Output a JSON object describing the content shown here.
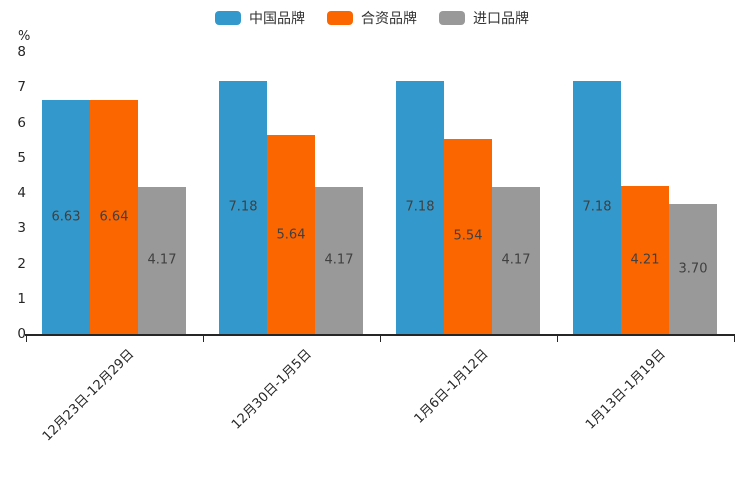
{
  "legend": {
    "items": [
      {
        "label": "中国品牌",
        "color": "#3399cc"
      },
      {
        "label": "合资品牌",
        "color": "#fc6600"
      },
      {
        "label": "进口品牌",
        "color": "#999999"
      }
    ]
  },
  "y_axis": {
    "unit": "%",
    "tick_labels": [
      "8",
      "7",
      "6",
      "5",
      "4",
      "3",
      "2",
      "1",
      "0"
    ]
  },
  "chart_data": {
    "type": "bar",
    "title": "",
    "categories": [
      "12月23日-12月29日",
      "12月30日-1月5日",
      "1月6日-1月12日",
      "1月13日-1月19日"
    ],
    "series": [
      {
        "name": "中国品牌",
        "color": "#3399cc",
        "values": [
          6.63,
          7.18,
          7.18,
          7.18
        ]
      },
      {
        "name": "合资品牌",
        "color": "#fc6600",
        "values": [
          6.64,
          5.64,
          5.54,
          4.21
        ]
      },
      {
        "name": "进口品牌",
        "color": "#999999",
        "values": [
          4.17,
          4.17,
          4.17,
          3.7
        ]
      }
    ],
    "xlabel": "",
    "ylabel": "%",
    "ylim": [
      0,
      8
    ],
    "grid": false,
    "legend_position": "top",
    "value_labels": "centered-inside-bars",
    "value_label_format": "2-decimals"
  }
}
